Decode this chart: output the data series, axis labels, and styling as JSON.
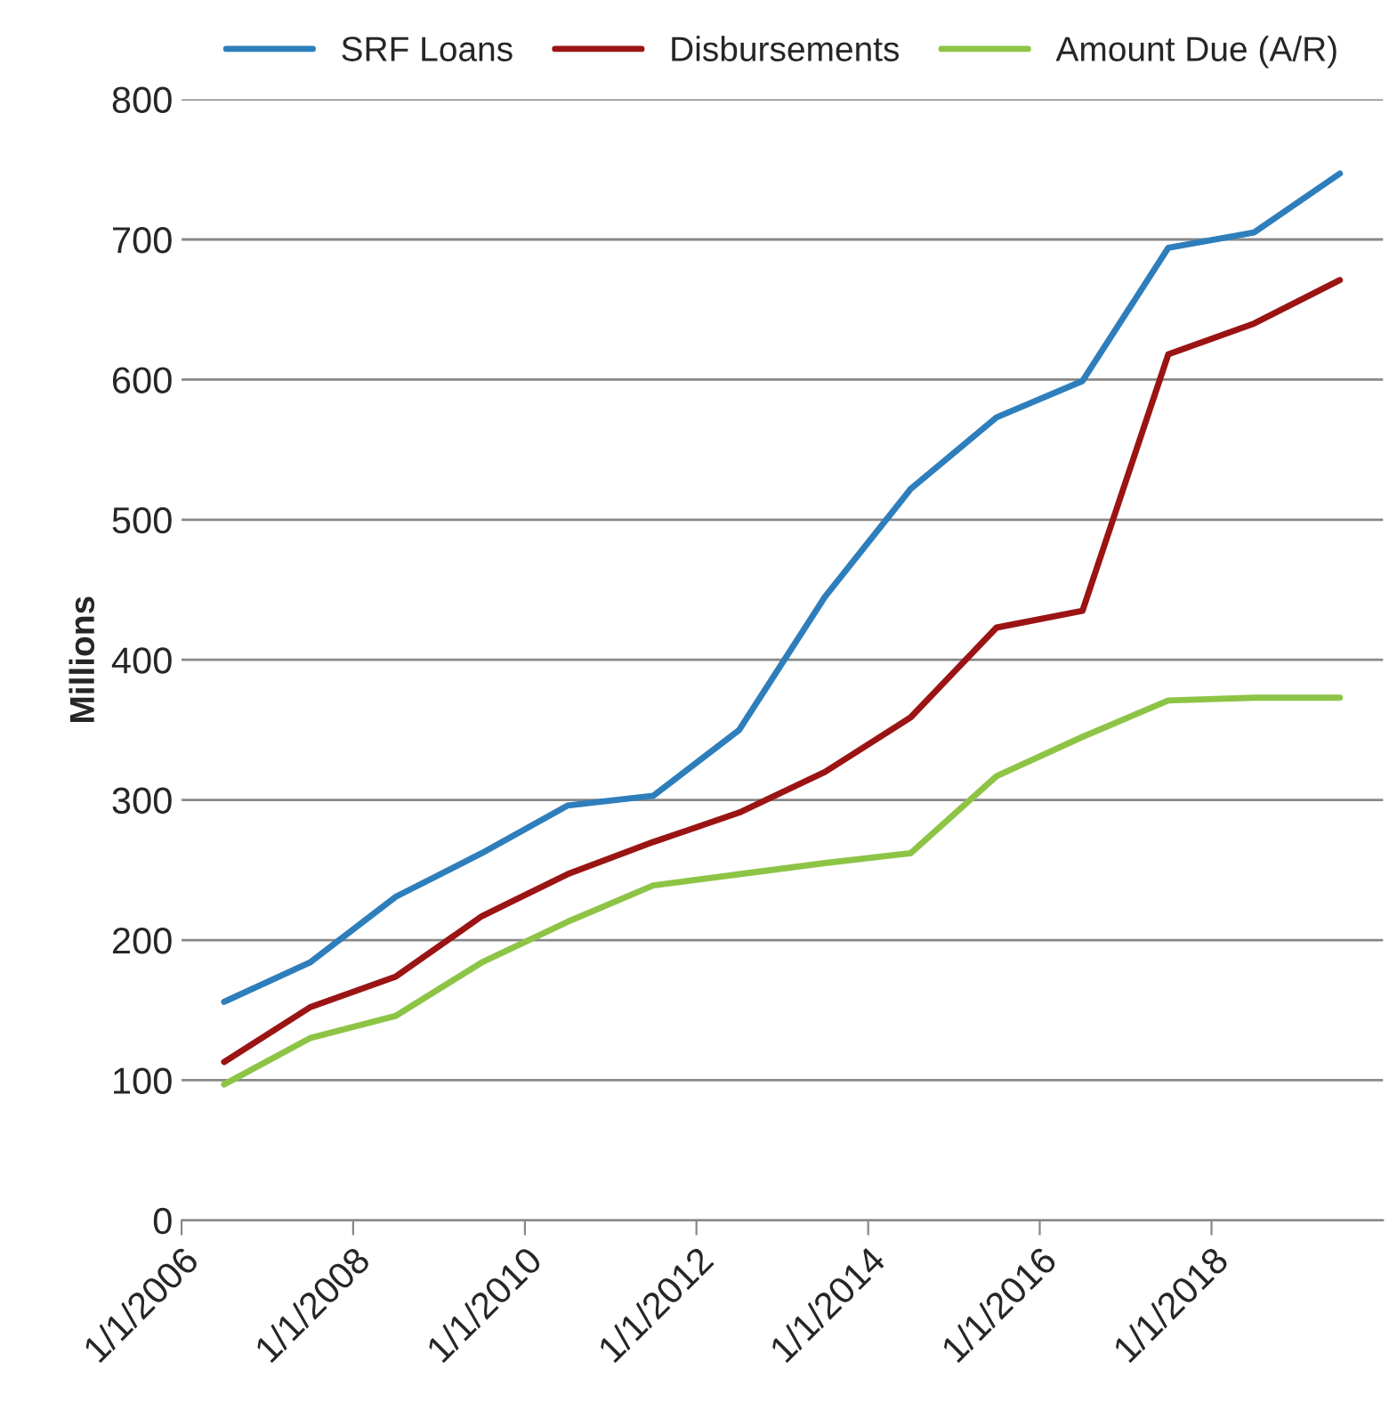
{
  "chart_data": {
    "type": "line",
    "ylabel": "Millions",
    "x": [
      "2006-07-01",
      "2007-07-01",
      "2008-07-01",
      "2009-07-01",
      "2010-07-01",
      "2011-07-01",
      "2012-07-01",
      "2013-07-01",
      "2014-07-01",
      "2015-07-01",
      "2016-07-01",
      "2017-07-01",
      "2018-07-01",
      "2019-07-01"
    ],
    "series": [
      {
        "name": "SRF Loans",
        "color": "#2e7ebc",
        "values": [
          156,
          184,
          231,
          262,
          296,
          303,
          350,
          445,
          522,
          573,
          599,
          694,
          705,
          747
        ]
      },
      {
        "name": "Disbursements",
        "color": "#9b1414",
        "values": [
          113,
          152,
          174,
          217,
          247,
          270,
          291,
          320,
          359,
          423,
          435,
          618,
          640,
          671
        ]
      },
      {
        "name": "Amount Due (A/R)",
        "color": "#8dc446",
        "values": [
          97,
          130,
          146,
          184,
          213,
          239,
          247,
          255,
          262,
          317,
          345,
          371,
          373,
          373
        ]
      }
    ],
    "xlim": [
      "2006-01-01",
      "2020-01-01"
    ],
    "xticks": [
      {
        "value": "2006-01-01",
        "label": "1/1/2006"
      },
      {
        "value": "2008-01-01",
        "label": "1/1/2008"
      },
      {
        "value": "2010-01-01",
        "label": "1/1/2010"
      },
      {
        "value": "2012-01-01",
        "label": "1/1/2012"
      },
      {
        "value": "2014-01-01",
        "label": "1/1/2014"
      },
      {
        "value": "2016-01-01",
        "label": "1/1/2016"
      },
      {
        "value": "2018-01-01",
        "label": "1/1/2018"
      }
    ],
    "ylim": [
      0,
      800
    ],
    "yticks": [
      0,
      100,
      200,
      300,
      400,
      500,
      600,
      700,
      800
    ],
    "grid": "y",
    "legend": "top",
    "marker": "none",
    "line_style": "solid"
  }
}
